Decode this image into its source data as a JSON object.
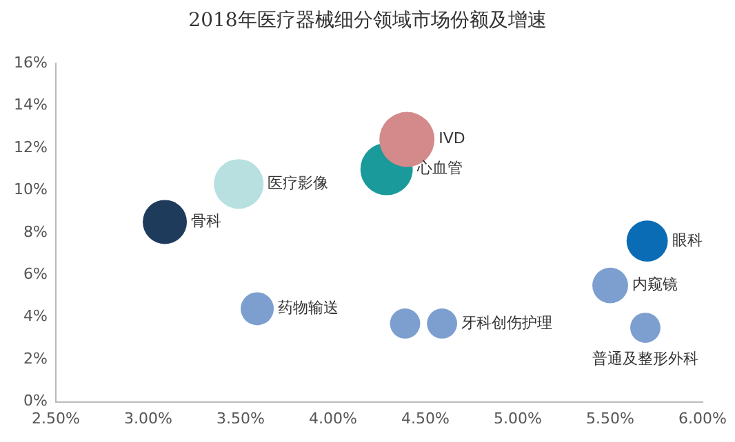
{
  "chart_data": {
    "type": "bubble",
    "title": "2018年医疗器械细分领域市场份额及增速",
    "xlim": [
      0.025,
      0.06
    ],
    "xticks": [
      {
        "value": 0.025,
        "label": "2.50%"
      },
      {
        "value": 0.03,
        "label": "3.00%"
      },
      {
        "value": 0.035,
        "label": "3.50%"
      },
      {
        "value": 0.04,
        "label": "4.00%"
      },
      {
        "value": 0.045,
        "label": "4.50%"
      },
      {
        "value": 0.05,
        "label": "5.00%"
      },
      {
        "value": 0.055,
        "label": "5.50%"
      },
      {
        "value": 0.06,
        "label": "6.00%"
      }
    ],
    "ylim": [
      0,
      0.16
    ],
    "yticks": [
      {
        "value": 0,
        "label": "0%"
      },
      {
        "value": 0.02,
        "label": "2%"
      },
      {
        "value": 0.04,
        "label": "4%"
      },
      {
        "value": 0.06,
        "label": "6%"
      },
      {
        "value": 0.08,
        "label": "8%"
      },
      {
        "value": 0.1,
        "label": "10%"
      },
      {
        "value": 0.12,
        "label": "12%"
      },
      {
        "value": 0.14,
        "label": "14%"
      },
      {
        "value": 0.16,
        "label": "16%"
      }
    ],
    "grid": false,
    "legend": false,
    "series": [
      {
        "name": "骨科",
        "color": "#1f3b5c",
        "x": [
          0.0309
        ],
        "values": [
          0.085
        ],
        "sizes": [
          0.64
        ]
      },
      {
        "name": "医疗影像",
        "color": "#b8e0e0",
        "x": [
          0.0349
        ],
        "values": [
          0.103
        ],
        "sizes": [
          0.81
        ]
      },
      {
        "name": "IVD",
        "color": "#d48a8a",
        "x": [
          0.044
        ],
        "values": [
          0.124
        ],
        "sizes": [
          1
        ]
      },
      {
        "name": "心血管",
        "color": "#1a9a9a",
        "x": [
          0.0429
        ],
        "values": [
          0.11
        ],
        "sizes": [
          0.9
        ]
      },
      {
        "name": "药物输送",
        "color": "#7d9fcf",
        "x": [
          0.0359
        ],
        "values": [
          0.044
        ],
        "sizes": [
          0.36
        ]
      },
      {
        "color": "#7d9fcf",
        "x": [
          0.0439
        ],
        "values": [
          0.037
        ],
        "sizes": [
          0.3
        ]
      },
      {
        "name": "牙科创伤护理",
        "color": "#7d9fcf",
        "x": [
          0.0459
        ],
        "values": [
          0.037
        ],
        "sizes": [
          0.3
        ]
      },
      {
        "name": "眼科",
        "color": "#0a6cb5",
        "x": [
          0.057
        ],
        "values": [
          0.076
        ],
        "sizes": [
          0.56
        ]
      },
      {
        "name": "内窥镜",
        "color": "#7d9fcf",
        "x": [
          0.055
        ],
        "values": [
          0.055
        ],
        "sizes": [
          0.42
        ]
      },
      {
        "name": "普通及整形外科",
        "color": "#7d9fcf",
        "x": [
          0.0569
        ],
        "values": [
          0.035
        ],
        "sizes": [
          0.3
        ]
      }
    ]
  }
}
